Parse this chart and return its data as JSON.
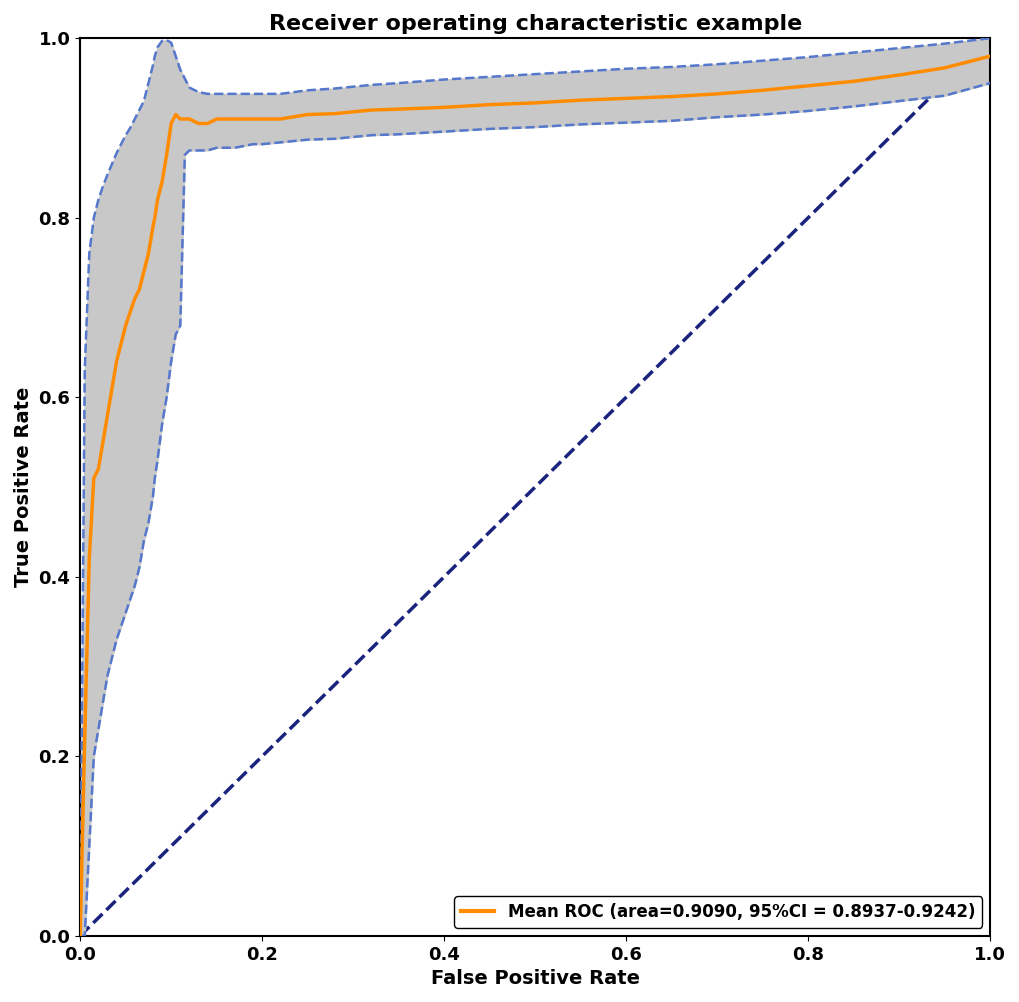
{
  "title": "Receiver operating characteristic example",
  "xlabel": "False Positive Rate",
  "ylabel": "True Positive Rate",
  "legend_label": "Mean ROC (area=0.9090, 95%CI = 0.8937-0.9242)",
  "roc_color": "#FF8C00",
  "ci_fill_color": "#C8C8C8",
  "ci_line_color": "#5577CC",
  "diagonal_color": "#1a237e",
  "title_fontsize": 16,
  "label_fontsize": 14,
  "tick_fontsize": 13,
  "legend_fontsize": 12,
  "roc_linewidth": 2.5,
  "ci_linewidth": 1.8,
  "diagonal_linewidth": 2.5,
  "mean_fpr": [
    0.0,
    0.0,
    0.005,
    0.01,
    0.015,
    0.02,
    0.025,
    0.03,
    0.035,
    0.04,
    0.045,
    0.05,
    0.055,
    0.06,
    0.065,
    0.07,
    0.075,
    0.08,
    0.082,
    0.085,
    0.09,
    0.095,
    0.1,
    0.105,
    0.11,
    0.115,
    0.12,
    0.13,
    0.14,
    0.15,
    0.16,
    0.17,
    0.18,
    0.19,
    0.2,
    0.22,
    0.25,
    0.28,
    0.3,
    0.32,
    0.35,
    0.4,
    0.45,
    0.5,
    0.55,
    0.6,
    0.65,
    0.7,
    0.75,
    0.8,
    0.85,
    0.9,
    0.95,
    1.0
  ],
  "mean_tpr": [
    0.0,
    0.0,
    0.22,
    0.42,
    0.51,
    0.52,
    0.55,
    0.58,
    0.61,
    0.64,
    0.66,
    0.68,
    0.695,
    0.71,
    0.72,
    0.74,
    0.76,
    0.79,
    0.8,
    0.82,
    0.84,
    0.87,
    0.905,
    0.915,
    0.91,
    0.91,
    0.91,
    0.905,
    0.905,
    0.91,
    0.91,
    0.91,
    0.91,
    0.91,
    0.91,
    0.91,
    0.915,
    0.916,
    0.918,
    0.92,
    0.921,
    0.923,
    0.926,
    0.928,
    0.931,
    0.933,
    0.935,
    0.938,
    0.942,
    0.947,
    0.952,
    0.959,
    0.967,
    0.98
  ],
  "upper_tpr": [
    0.0,
    0.0,
    0.63,
    0.76,
    0.8,
    0.82,
    0.835,
    0.848,
    0.86,
    0.872,
    0.882,
    0.892,
    0.9,
    0.91,
    0.92,
    0.93,
    0.95,
    0.97,
    0.98,
    0.99,
    0.997,
    0.998,
    0.995,
    0.98,
    0.965,
    0.955,
    0.945,
    0.94,
    0.938,
    0.938,
    0.938,
    0.938,
    0.938,
    0.938,
    0.938,
    0.938,
    0.942,
    0.944,
    0.946,
    0.948,
    0.95,
    0.954,
    0.957,
    0.96,
    0.963,
    0.966,
    0.968,
    0.971,
    0.975,
    0.979,
    0.984,
    0.989,
    0.994,
    1.0
  ],
  "lower_tpr": [
    0.0,
    0.0,
    0.0,
    0.1,
    0.2,
    0.23,
    0.26,
    0.29,
    0.31,
    0.33,
    0.345,
    0.36,
    0.375,
    0.39,
    0.41,
    0.44,
    0.46,
    0.49,
    0.51,
    0.53,
    0.57,
    0.6,
    0.64,
    0.67,
    0.68,
    0.87,
    0.875,
    0.875,
    0.875,
    0.878,
    0.878,
    0.878,
    0.88,
    0.882,
    0.882,
    0.884,
    0.887,
    0.888,
    0.89,
    0.892,
    0.893,
    0.896,
    0.899,
    0.901,
    0.904,
    0.906,
    0.908,
    0.912,
    0.915,
    0.919,
    0.924,
    0.93,
    0.936,
    0.95
  ]
}
